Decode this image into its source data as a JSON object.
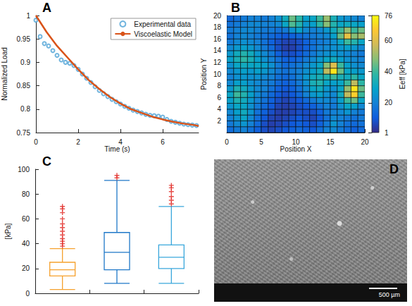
{
  "chart_data": [
    {
      "type": "line",
      "label": "A",
      "x_label": "Time (s)",
      "y_label": "Normalized Load",
      "xlim": [
        0,
        7.7
      ],
      "xticks": [
        0,
        2,
        4,
        6
      ],
      "ylim": [
        0.75,
        1
      ],
      "yticks": [
        0.75,
        0.8,
        0.85,
        0.9,
        0.95,
        1
      ],
      "legend": "top-right",
      "series": [
        {
          "name": "Experimental data",
          "type": "scatter",
          "color": "#4fa3d6",
          "marker": "circle",
          "x": [
            0,
            0.2,
            0.4,
            0.6,
            0.8,
            1.0,
            1.2,
            1.4,
            1.6,
            1.8,
            2.0,
            2.2,
            2.4,
            2.6,
            2.8,
            3.0,
            3.2,
            3.4,
            3.6,
            3.8,
            4.0,
            4.2,
            4.4,
            4.6,
            4.8,
            5.0,
            5.2,
            5.4,
            5.6,
            5.8,
            6.0,
            6.2,
            6.4,
            6.6,
            6.8,
            7.0,
            7.2,
            7.4,
            7.6
          ],
          "values": [
            0.99,
            0.955,
            0.94,
            0.935,
            0.925,
            0.915,
            0.905,
            0.9,
            0.898,
            0.893,
            0.885,
            0.875,
            0.866,
            0.857,
            0.848,
            0.84,
            0.833,
            0.827,
            0.821,
            0.816,
            0.811,
            0.806,
            0.802,
            0.798,
            0.795,
            0.792,
            0.789,
            0.787,
            0.786,
            0.785,
            0.783,
            0.778,
            0.774,
            0.772,
            0.77,
            0.768,
            0.767,
            0.766,
            0.765
          ]
        },
        {
          "name": "Viscoelastic Model",
          "type": "line",
          "color": "#d95319",
          "x": [
            0,
            0.5,
            1,
            1.5,
            2,
            2.5,
            3,
            3.5,
            4,
            4.5,
            5,
            5.5,
            6,
            6.5,
            7,
            7.5,
            7.7
          ],
          "values": [
            1.0,
            0.965,
            0.935,
            0.91,
            0.885,
            0.862,
            0.843,
            0.826,
            0.812,
            0.8,
            0.792,
            0.784,
            0.778,
            0.773,
            0.769,
            0.766,
            0.764
          ]
        }
      ]
    },
    {
      "type": "heatmap",
      "label": "B",
      "x_label": "Position X",
      "y_label": "Position Y",
      "xlim": [
        0,
        20
      ],
      "xticks": [
        0,
        5,
        10,
        15,
        20
      ],
      "ylim": [
        0,
        20
      ],
      "yticks": [
        2,
        4,
        6,
        8,
        10,
        12,
        14,
        16,
        18,
        20
      ],
      "grid": true,
      "cells": [
        [
          15,
          18,
          20,
          16,
          12,
          8,
          6,
          8,
          10,
          12,
          14,
          12,
          10,
          15,
          20,
          22,
          18,
          15,
          12,
          14
        ],
        [
          18,
          22,
          25,
          20,
          14,
          8,
          5,
          6,
          8,
          10,
          12,
          10,
          8,
          12,
          18,
          25,
          20,
          16,
          14,
          16
        ],
        [
          20,
          25,
          30,
          22,
          15,
          10,
          6,
          5,
          6,
          8,
          10,
          8,
          6,
          10,
          16,
          22,
          20,
          18,
          16,
          18
        ],
        [
          22,
          28,
          32,
          25,
          16,
          12,
          8,
          5,
          5,
          6,
          8,
          8,
          8,
          12,
          18,
          20,
          22,
          25,
          20,
          18
        ],
        [
          25,
          30,
          30,
          24,
          18,
          14,
          10,
          6,
          5,
          6,
          8,
          10,
          12,
          16,
          20,
          18,
          24,
          30,
          28,
          22
        ],
        [
          28,
          35,
          32,
          26,
          20,
          16,
          12,
          8,
          6,
          8,
          10,
          14,
          18,
          22,
          22,
          20,
          28,
          40,
          45,
          30
        ],
        [
          30,
          40,
          36,
          28,
          22,
          18,
          14,
          10,
          8,
          10,
          14,
          20,
          26,
          28,
          24,
          22,
          32,
          55,
          68,
          40
        ],
        [
          26,
          35,
          32,
          26,
          22,
          20,
          16,
          12,
          10,
          12,
          16,
          22,
          30,
          32,
          26,
          24,
          30,
          50,
          72,
          45
        ],
        [
          22,
          28,
          28,
          24,
          22,
          20,
          18,
          14,
          12,
          14,
          18,
          24,
          34,
          36,
          30,
          28,
          30,
          40,
          55,
          38
        ],
        [
          20,
          24,
          26,
          24,
          24,
          22,
          20,
          16,
          14,
          16,
          20,
          26,
          32,
          34,
          36,
          40,
          34,
          32,
          38,
          30
        ],
        [
          22,
          26,
          28,
          26,
          28,
          26,
          22,
          18,
          16,
          18,
          20,
          24,
          28,
          32,
          55,
          72,
          45,
          30,
          28,
          26
        ],
        [
          24,
          30,
          32,
          30,
          30,
          28,
          24,
          18,
          14,
          16,
          18,
          22,
          26,
          30,
          48,
          60,
          40,
          28,
          24,
          22
        ],
        [
          28,
          34,
          38,
          34,
          28,
          24,
          20,
          16,
          12,
          12,
          14,
          18,
          22,
          26,
          30,
          32,
          28,
          24,
          22,
          20
        ],
        [
          26,
          32,
          36,
          32,
          26,
          22,
          18,
          12,
          8,
          8,
          10,
          14,
          18,
          22,
          24,
          26,
          24,
          22,
          20,
          18
        ],
        [
          22,
          26,
          28,
          26,
          22,
          18,
          14,
          8,
          5,
          5,
          8,
          12,
          16,
          20,
          22,
          24,
          26,
          28,
          26,
          22
        ],
        [
          18,
          22,
          24,
          22,
          20,
          16,
          12,
          8,
          6,
          6,
          8,
          12,
          16,
          18,
          20,
          24,
          30,
          40,
          36,
          30
        ],
        [
          16,
          20,
          22,
          20,
          18,
          16,
          14,
          12,
          10,
          12,
          14,
          16,
          18,
          20,
          22,
          28,
          45,
          62,
          48,
          52
        ],
        [
          18,
          20,
          22,
          22,
          20,
          18,
          18,
          16,
          18,
          24,
          28,
          22,
          20,
          22,
          26,
          32,
          40,
          50,
          40,
          45
        ],
        [
          16,
          18,
          20,
          22,
          22,
          20,
          20,
          22,
          30,
          42,
          36,
          26,
          28,
          38,
          48,
          36,
          30,
          32,
          30,
          28
        ],
        [
          14,
          16,
          18,
          20,
          20,
          18,
          20,
          24,
          32,
          45,
          38,
          28,
          30,
          40,
          50,
          34,
          26,
          24,
          22,
          20
        ]
      ],
      "colorbar": {
        "label": "Eeff [kPa]",
        "range": [
          1,
          76
        ],
        "ticks": [
          1,
          20,
          40,
          60,
          76
        ]
      }
    },
    {
      "type": "boxplot",
      "label": "C",
      "y_label": "[kPa]",
      "categories": [
        null,
        null,
        null
      ],
      "ylim": [
        0,
        100
      ],
      "yticks": [
        0,
        20,
        40,
        60,
        80,
        100
      ],
      "marker": "plus",
      "series": [
        {
          "color": "#f5a12e",
          "min": 3,
          "q1": 14,
          "median": 19,
          "q3": 25,
          "max": 36,
          "outliers": [
            38,
            40,
            42,
            44,
            47,
            50,
            53,
            56,
            60,
            65,
            68,
            70
          ]
        },
        {
          "color": "#1f78c8",
          "min": 8,
          "q1": 19,
          "median": 33,
          "q3": 49,
          "max": 91,
          "outliers": [
            93,
            95
          ]
        },
        {
          "color": "#3aa7dc",
          "min": 8,
          "q1": 20,
          "median": 29,
          "q3": 39,
          "max": 70,
          "outliers": [
            72,
            75,
            78,
            82,
            85,
            87
          ]
        }
      ]
    }
  ],
  "image": {
    "label": "D",
    "scale_bar": "500 µm"
  }
}
